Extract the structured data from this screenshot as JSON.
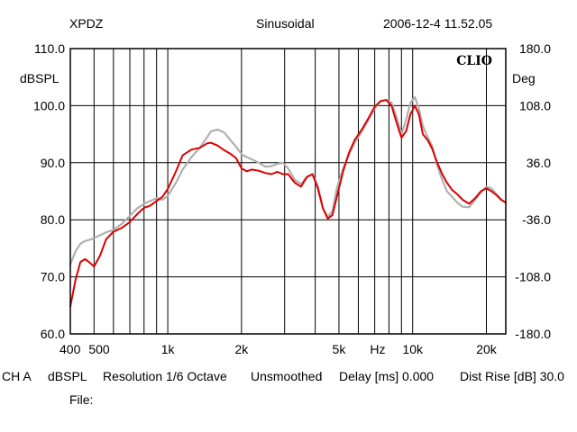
{
  "header": {
    "device": "XPDZ",
    "stimulus": "Sinusoidal",
    "timestamp": "2006-12-4 11.52.05"
  },
  "footer": {
    "channel": "CH A",
    "unit": "dBSPL",
    "resolution": "Resolution 1/6 Octave",
    "smoothing": "Unsmoothed",
    "delay": "Delay [ms] 0.000",
    "dist_rise": "Dist Rise [dB] 30.0",
    "file_label": "File:"
  },
  "colors": {
    "series_1": "#dd0000",
    "series_2": "#b0b0b0",
    "grid": "#000000"
  },
  "chart_data": {
    "type": "line",
    "logo": "CLIO",
    "xscale": "log",
    "xlim": [
      400,
      24000
    ],
    "ylim": [
      60,
      110
    ],
    "y2lim": [
      -180,
      180
    ],
    "ylabel": "dBSPL",
    "y2label": "Deg",
    "xunit_label": "Hz",
    "grid": true,
    "x_tick_labels": [
      {
        "value": 400,
        "label": "400"
      },
      {
        "value": 500,
        "label": "500"
      },
      {
        "value": 1000,
        "label": "1k"
      },
      {
        "value": 2000,
        "label": "2k"
      },
      {
        "value": 5000,
        "label": "5k"
      },
      {
        "value": 10000,
        "label": "10k"
      },
      {
        "value": 20000,
        "label": "20k"
      }
    ],
    "y_ticks": [
      "110.0",
      "100.0",
      "90.0",
      "80.0",
      "70.0",
      "60.0"
    ],
    "y2_ticks": [
      "180.0",
      "108.0",
      "36.0",
      "-36.0",
      "-108.0",
      "-180.0"
    ],
    "grid_x": [
      500,
      600,
      700,
      800,
      900,
      1000,
      2000,
      3000,
      4000,
      5000,
      6000,
      7000,
      8000,
      9000,
      10000,
      20000
    ],
    "series": [
      {
        "color": "#dd0000",
        "x": [
          400,
          420,
          440,
          460,
          480,
          500,
          530,
          560,
          600,
          650,
          700,
          750,
          800,
          850,
          900,
          950,
          1000,
          1080,
          1150,
          1250,
          1350,
          1450,
          1500,
          1600,
          1700,
          1800,
          1900,
          2000,
          2100,
          2200,
          2350,
          2500,
          2650,
          2800,
          2950,
          3100,
          3300,
          3500,
          3700,
          3900,
          4100,
          4300,
          4500,
          4700,
          4900,
          5200,
          5500,
          5800,
          6200,
          6600,
          7000,
          7400,
          7800,
          8200,
          8600,
          9000,
          9400,
          9800,
          10200,
          10600,
          11000,
          11500,
          12000,
          12600,
          13200,
          13800,
          14500,
          15200,
          16000,
          17000,
          18000,
          19000,
          20000,
          21000,
          22000,
          23000,
          24000
        ],
        "values": [
          64.8,
          69.5,
          72.6,
          73.1,
          72.5,
          71.8,
          73.8,
          76.6,
          77.9,
          78.6,
          79.6,
          81.0,
          82.1,
          82.5,
          83.3,
          84.0,
          85.4,
          88.5,
          91.3,
          92.3,
          92.6,
          93.4,
          93.5,
          93.0,
          92.2,
          91.6,
          90.8,
          89.0,
          88.5,
          88.8,
          88.6,
          88.2,
          88.0,
          88.4,
          88.0,
          88.0,
          86.5,
          85.8,
          87.5,
          88.0,
          85.5,
          82.0,
          80.2,
          80.8,
          84.0,
          88.5,
          91.8,
          94.0,
          95.8,
          97.8,
          99.8,
          100.8,
          101.0,
          100.0,
          97.0,
          94.4,
          95.5,
          98.5,
          100.0,
          98.5,
          95.0,
          94.0,
          92.5,
          90.0,
          88.0,
          86.5,
          85.2,
          84.5,
          83.5,
          82.8,
          83.8,
          85.0,
          85.5,
          85.0,
          84.3,
          83.5,
          83.0
        ]
      },
      {
        "color": "#b0b0b0",
        "x": [
          400,
          420,
          440,
          460,
          480,
          500,
          530,
          560,
          600,
          650,
          700,
          750,
          800,
          850,
          900,
          950,
          1000,
          1080,
          1150,
          1250,
          1350,
          1450,
          1500,
          1600,
          1700,
          1800,
          1900,
          2000,
          2100,
          2200,
          2350,
          2500,
          2650,
          2800,
          2950,
          3100,
          3300,
          3500,
          3700,
          3900,
          4100,
          4300,
          4500,
          4700,
          4900,
          5200,
          5500,
          5800,
          6200,
          6600,
          7000,
          7400,
          7800,
          8200,
          8600,
          9000,
          9400,
          9800,
          10200,
          10600,
          11000,
          11500,
          12000,
          12600,
          13200,
          13800,
          14500,
          15200,
          16000,
          17000,
          18000,
          19000,
          20000,
          21000,
          22000,
          23000,
          24000
        ],
        "values": [
          72.2,
          74.5,
          75.8,
          76.3,
          76.5,
          76.8,
          77.3,
          77.8,
          78.2,
          79.3,
          80.7,
          82.0,
          82.8,
          83.3,
          83.8,
          83.5,
          84.2,
          86.5,
          88.8,
          91.0,
          92.6,
          94.5,
          95.5,
          95.8,
          95.3,
          94.0,
          92.8,
          91.5,
          91.0,
          90.6,
          90.0,
          89.3,
          89.4,
          89.8,
          90.0,
          89.0,
          87.0,
          86.3,
          87.5,
          88.0,
          86.0,
          82.0,
          80.5,
          81.5,
          85.5,
          89.0,
          91.5,
          93.5,
          95.5,
          97.5,
          99.5,
          100.8,
          101.0,
          100.5,
          98.0,
          95.0,
          97.5,
          100.5,
          101.5,
          99.5,
          96.5,
          94.5,
          93.0,
          89.5,
          87.0,
          85.0,
          84.0,
          83.0,
          82.3,
          82.2,
          83.5,
          84.8,
          85.8,
          85.5,
          84.5,
          83.5,
          83.0
        ]
      }
    ]
  }
}
